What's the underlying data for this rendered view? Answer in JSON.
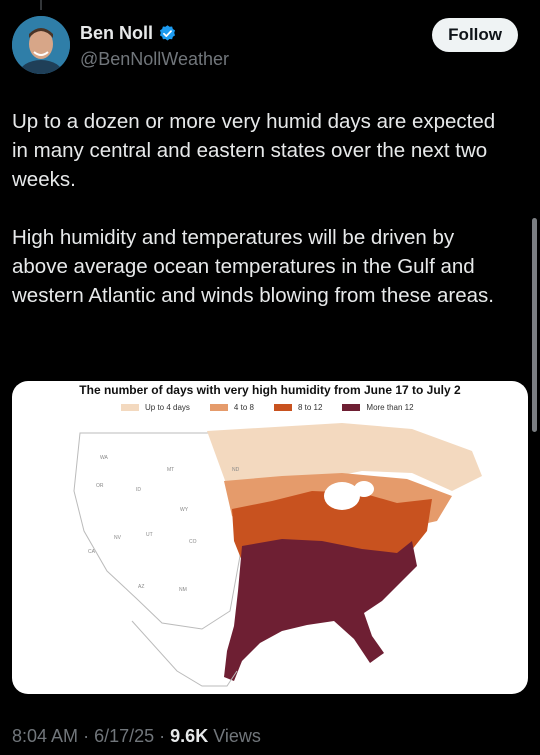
{
  "tweet": {
    "author_name": "Ben Noll",
    "author_handle": "@BenNollWeather",
    "follow_label": "Follow",
    "paragraphs": [
      "Up to a dozen or more very humid days are expected in many central and eastern states over the next two weeks.",
      "High humidity and temperatures will be driven by above average ocean temperatures in the Gulf and western Atlantic and winds blowing from these areas."
    ],
    "time": "8:04 AM",
    "date": "6/17/25",
    "views_count": "9.6K",
    "views_label": "Views"
  },
  "map": {
    "title": "The number of days with very high humidity from June 17 to July 2",
    "legend": [
      {
        "label": "Up to 4 days",
        "color": "#f3d9bf"
      },
      {
        "label": "4 to 8",
        "color": "#e59b6b"
      },
      {
        "label": "8 to 12",
        "color": "#c8521f"
      },
      {
        "label": "More than 12",
        "color": "#6e1f33"
      }
    ],
    "state_labels": [
      "WA",
      "OR",
      "CA",
      "NV",
      "ID",
      "MT",
      "WY",
      "UT",
      "AZ",
      "CO",
      "NM",
      "ND"
    ]
  },
  "colors": {
    "background": "#000000",
    "text_primary": "#e7e9ea",
    "text_secondary": "#71767b",
    "verified_blue": "#1d9bf0"
  }
}
